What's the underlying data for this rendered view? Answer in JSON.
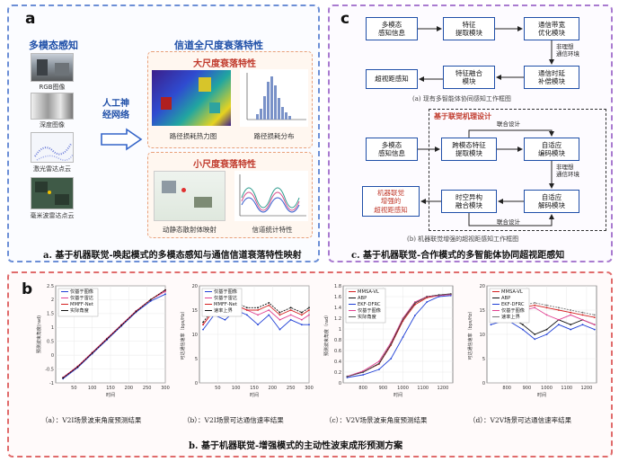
{
  "panel_a": {
    "letter": "a",
    "left_title": "多模态感知",
    "modalities": [
      "RGB图像",
      "深度图像",
      "激光雷达点云",
      "毫米波雷达点云"
    ],
    "arrow_label": "人工神\n经网络",
    "right_title": "信道全尺度衰落特性",
    "large_scale_title": "大尺度衰落特性",
    "large_scale_items": [
      "路径损耗热力图",
      "路径损耗分布"
    ],
    "small_scale_title": "小尺度衰落特性",
    "small_scale_items": [
      "动静态散射体映射",
      "信道统计特性"
    ],
    "caption": "a. 基于机器联觉-唤起模式的多模态感知与通信信道衰落特性映射"
  },
  "panel_c": {
    "letter": "c",
    "top_flow": {
      "boxes": [
        "多模态\n感知信息",
        "特征\n提取模块",
        "通信带宽\n优化模块",
        "超视距感知",
        "特征融合\n模块",
        "通信时延\n补偿模块"
      ],
      "side_label": "非理想\n通信环境"
    },
    "top_caption": "(a) 现有多智能体协同感知工作框图",
    "bottom_flow": {
      "mechanism_title": "基于联觉机理设计",
      "boxes": [
        "多模态\n感知信息",
        "跨模态特征\n提取模块",
        "自适应\n编码模块",
        "机器联觉\n增强的\n超视距感知",
        "时空异构\n融合模块",
        "自适应\n解码模块"
      ],
      "joint_label_top": "联合设计",
      "joint_label_bottom": "联合设计",
      "side_label": "非理想\n通信环境"
    },
    "bottom_caption": "(b) 机器联觉增强的超视距感知工作框图",
    "caption": "c. 基于机器联觉-合作模式的多智能体协同超视距感知"
  },
  "panel_b": {
    "letter": "b",
    "caption": "b. 基于机器联觉-增强模式的主动性波束成形预测方案",
    "chart_captions": [
      "（a）：V2I场景波束角度预测结果",
      "（b）：V2I场景可达通信速率结果",
      "（c）：V2V场景波束角度预测结果",
      "（d）：V2V场景可达通信速率结果"
    ]
  },
  "chart_data": [
    {
      "type": "line",
      "xlabel": "时间",
      "ylabel": "预测波束角度(rad)",
      "xticks": [
        "50",
        "100",
        "150",
        "200",
        "250",
        "300"
      ],
      "xlim": [
        0,
        300
      ],
      "ylim": [
        -1,
        2.5
      ],
      "yticks": [
        "-1",
        "-0.5",
        "0",
        "0.5",
        "1",
        "1.5",
        "2",
        "2.5"
      ],
      "series": [
        {
          "name": "仅基于图像",
          "color": "#1f3fd6",
          "x": [
            20,
            60,
            100,
            140,
            180,
            220,
            260,
            300
          ],
          "values": [
            -0.85,
            -0.45,
            0.05,
            0.55,
            1.05,
            1.55,
            1.95,
            2.2
          ]
        },
        {
          "name": "仅基于雷达",
          "color": "#e04090",
          "x": [
            20,
            60,
            100,
            140,
            180,
            220,
            260,
            300
          ],
          "values": [
            -0.8,
            -0.4,
            0.1,
            0.6,
            1.1,
            1.6,
            2.0,
            2.3
          ]
        },
        {
          "name": "MMFF-Net",
          "color": "#d42020",
          "x": [
            20,
            60,
            100,
            140,
            180,
            220,
            260,
            300
          ],
          "values": [
            -0.82,
            -0.42,
            0.08,
            0.58,
            1.08,
            1.58,
            2.0,
            2.35
          ]
        },
        {
          "name": "实际角度",
          "color": "#111111",
          "x": [
            20,
            60,
            100,
            140,
            180,
            220,
            260,
            300
          ],
          "values": [
            -0.82,
            -0.42,
            0.08,
            0.58,
            1.08,
            1.58,
            2.0,
            2.35
          ]
        }
      ]
    },
    {
      "type": "line",
      "xlabel": "时间",
      "ylabel": "可达通信速率（bps/Hz）",
      "xticks": [
        "50",
        "100",
        "150",
        "200",
        "250",
        "300"
      ],
      "xlim": [
        0,
        300
      ],
      "ylim": [
        0,
        20
      ],
      "yticks": [
        "0",
        "5",
        "10",
        "15",
        "20"
      ],
      "series": [
        {
          "name": "仅基于图像",
          "color": "#1f3fd6",
          "x": [
            10,
            40,
            70,
            100,
            130,
            160,
            190,
            220,
            250,
            280,
            300
          ],
          "values": [
            11,
            14,
            13,
            15,
            14,
            12,
            14,
            11,
            13,
            12,
            12
          ]
        },
        {
          "name": "仅基于雷达",
          "color": "#e04090",
          "x": [
            10,
            40,
            70,
            100,
            130,
            160,
            190,
            220,
            250,
            280,
            300
          ],
          "values": [
            12,
            15,
            14,
            16,
            15,
            14,
            15,
            13,
            14,
            13,
            14
          ]
        },
        {
          "name": "MMFF-Net",
          "color": "#d42020",
          "x": [
            10,
            40,
            70,
            100,
            130,
            160,
            190,
            220,
            250,
            280,
            300
          ],
          "values": [
            12,
            15,
            15,
            16,
            15,
            15,
            16,
            14,
            15,
            14,
            15
          ]
        },
        {
          "name": "速率上界",
          "color": "#111111",
          "x": [
            10,
            40,
            70,
            100,
            130,
            160,
            190,
            220,
            250,
            280,
            300
          ],
          "values": [
            12.5,
            15.5,
            15.5,
            16.5,
            15.5,
            15.5,
            16.5,
            14.5,
            15.5,
            14.5,
            15.5
          ]
        }
      ]
    },
    {
      "type": "line",
      "xlabel": "时间",
      "ylabel": "预测波束角度（rad）",
      "xticks": [
        "800",
        "900",
        "1000",
        "1100",
        "1200"
      ],
      "xlim": [
        700,
        1250
      ],
      "ylim": [
        0,
        1.8
      ],
      "yticks": [
        "0",
        "0.2",
        "0.4",
        "0.6",
        "0.8",
        "1",
        "1.2",
        "1.4",
        "1.6",
        "1.8"
      ],
      "series": [
        {
          "name": "MMSA-VL",
          "color": "#d42020",
          "x": [
            720,
            800,
            880,
            940,
            1000,
            1060,
            1120,
            1180,
            1240
          ],
          "values": [
            0.12,
            0.2,
            0.35,
            0.7,
            1.15,
            1.45,
            1.58,
            1.62,
            1.64
          ]
        },
        {
          "name": "ABP",
          "color": "#111111",
          "x": [
            720,
            800,
            880,
            940,
            1000,
            1060,
            1120,
            1180,
            1240
          ],
          "values": [
            0.12,
            0.2,
            0.36,
            0.72,
            1.18,
            1.48,
            1.6,
            1.63,
            1.65
          ]
        },
        {
          "name": "EKF-DFRC",
          "color": "#1f3fd6",
          "x": [
            720,
            800,
            880,
            940,
            1000,
            1060,
            1120,
            1180,
            1240
          ],
          "values": [
            0.1,
            0.15,
            0.25,
            0.45,
            0.85,
            1.25,
            1.5,
            1.6,
            1.62
          ]
        },
        {
          "name": "仅基于图像",
          "color": "#e04090",
          "x": [
            720,
            800,
            880,
            940,
            1000,
            1060,
            1120,
            1180,
            1240
          ],
          "values": [
            0.12,
            0.22,
            0.4,
            0.75,
            1.2,
            1.5,
            1.6,
            1.62,
            1.64
          ]
        },
        {
          "name": "实际角度",
          "color": "#555555",
          "x": [
            720,
            800,
            880,
            940,
            1000,
            1060,
            1120,
            1180,
            1240
          ],
          "values": [
            0.12,
            0.2,
            0.36,
            0.72,
            1.18,
            1.48,
            1.6,
            1.63,
            1.65
          ]
        }
      ]
    },
    {
      "type": "line",
      "xlabel": "时间",
      "ylabel": "可达通信速率（bps/Hz）",
      "xticks": [
        "800",
        "900",
        "1000",
        "1100",
        "1200"
      ],
      "xlim": [
        700,
        1250
      ],
      "ylim": [
        0,
        20
      ],
      "yticks": [
        "0",
        "5",
        "10",
        "15",
        "20"
      ],
      "series": [
        {
          "name": "MMSA-VL",
          "color": "#d42020",
          "x": [
            720,
            800,
            880,
            940,
            1000,
            1060,
            1120,
            1180,
            1240
          ],
          "values": [
            14,
            15,
            15.5,
            16,
            15.5,
            15,
            14.5,
            14,
            13.5
          ]
        },
        {
          "name": "ABP",
          "color": "#111111",
          "x": [
            720,
            800,
            880,
            940,
            1000,
            1060,
            1120,
            1180,
            1240
          ],
          "values": [
            13,
            14,
            12,
            10,
            11,
            13,
            12,
            13,
            12
          ]
        },
        {
          "name": "EKF-DFRC",
          "color": "#1f3fd6",
          "x": [
            720,
            800,
            880,
            940,
            1000,
            1060,
            1120,
            1180,
            1240
          ],
          "values": [
            12,
            13,
            11,
            9,
            10,
            12,
            11,
            12,
            11
          ]
        },
        {
          "name": "仅基于图像",
          "color": "#e04090",
          "x": [
            720,
            800,
            880,
            940,
            1000,
            1060,
            1120,
            1180,
            1240
          ],
          "values": [
            13,
            14,
            15,
            15.5,
            14,
            13,
            14,
            13,
            12
          ]
        },
        {
          "name": "速率上界",
          "color": "#777777",
          "x": [
            720,
            800,
            880,
            940,
            1000,
            1060,
            1120,
            1180,
            1240
          ],
          "values": [
            14.5,
            15.5,
            16,
            16.5,
            16,
            15.5,
            15,
            14.5,
            14
          ]
        }
      ]
    }
  ]
}
